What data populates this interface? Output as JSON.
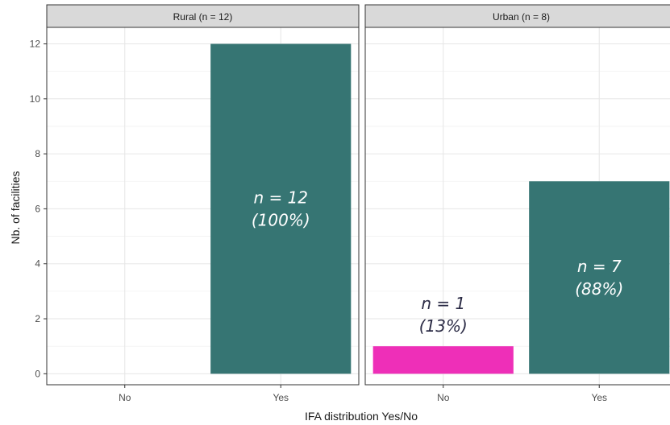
{
  "chart_data": {
    "type": "bar",
    "xlabel": "IFA distribution Yes/No",
    "ylabel": "Nb. of facilities",
    "ylim": [
      -0.4,
      12.6
    ],
    "yticks": [
      0,
      2,
      4,
      6,
      8,
      10,
      12
    ],
    "categories": [
      "No",
      "Yes"
    ],
    "grid": true,
    "colors": {
      "No": "#ee2fb8",
      "Yes": "#367573",
      "strip_bg": "#d9d9d9",
      "label_dark": "#2b2b45",
      "label_light": "#ffffff"
    },
    "panels": [
      {
        "title": "Rural (n = 12)",
        "bars": [
          {
            "category": "Yes",
            "value": 12,
            "label_n": "n = 12",
            "label_pct": "(100%)"
          }
        ]
      },
      {
        "title": "Urban (n = 8)",
        "bars": [
          {
            "category": "No",
            "value": 1,
            "label_n": "n = 1",
            "label_pct": "(13%)"
          },
          {
            "category": "Yes",
            "value": 7,
            "label_n": "n = 7",
            "label_pct": "(88%)"
          }
        ]
      }
    ]
  }
}
